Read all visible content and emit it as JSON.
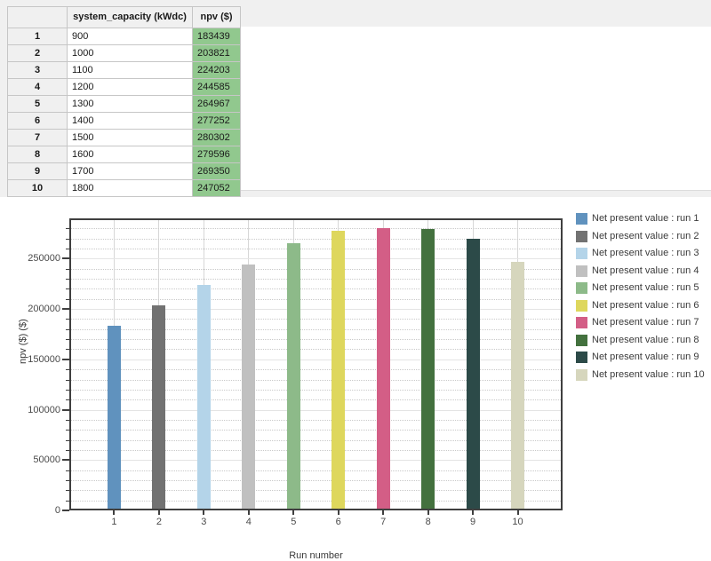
{
  "page": {
    "background": "#f0f0f0",
    "panel_background": "#ffffff"
  },
  "table": {
    "corner_header": "",
    "columns": [
      "system_capacity (kWdc)",
      "npv ($)"
    ],
    "rows": [
      {
        "run": "1",
        "system_capacity": "900",
        "npv": "183439"
      },
      {
        "run": "2",
        "system_capacity": "1000",
        "npv": "203821"
      },
      {
        "run": "3",
        "system_capacity": "1100",
        "npv": "224203"
      },
      {
        "run": "4",
        "system_capacity": "1200",
        "npv": "244585"
      },
      {
        "run": "5",
        "system_capacity": "1300",
        "npv": "264967"
      },
      {
        "run": "6",
        "system_capacity": "1400",
        "npv": "277252"
      },
      {
        "run": "7",
        "system_capacity": "1500",
        "npv": "280302"
      },
      {
        "run": "8",
        "system_capacity": "1600",
        "npv": "279596"
      },
      {
        "run": "9",
        "system_capacity": "1700",
        "npv": "269350"
      },
      {
        "run": "10",
        "system_capacity": "1800",
        "npv": "247052"
      }
    ],
    "npv_cell_color": "#91c88e",
    "header_bg": "#f0f0f0"
  },
  "chart_data": {
    "type": "bar",
    "title": "",
    "xlabel": "Run number",
    "ylabel": "npv ($) ($)",
    "categories": [
      1,
      2,
      3,
      4,
      5,
      6,
      7,
      8,
      9,
      10
    ],
    "values": [
      183439,
      203821,
      224203,
      244585,
      264967,
      277252,
      280302,
      279596,
      269350,
      247052
    ],
    "colors": [
      "#6092BE",
      "#727272",
      "#B4D4E9",
      "#C0C0C0",
      "#8DBA89",
      "#DED75D",
      "#D35E86",
      "#43713E",
      "#2C4A48",
      "#D6D6BD"
    ],
    "legend": [
      "Net present value : run 1",
      "Net present value : run 2",
      "Net present value : run 3",
      "Net present value : run 4",
      "Net present value : run 5",
      "Net present value : run 6",
      "Net present value : run 7",
      "Net present value : run 8",
      "Net present value : run 9",
      "Net present value : run 10"
    ],
    "xlim": [
      0,
      11
    ],
    "ylim": [
      0,
      290000
    ],
    "yticks": [
      0,
      50000,
      100000,
      150000,
      200000,
      250000
    ],
    "ytick_minor_step": 10000,
    "grid": true,
    "legend_position": "right"
  }
}
